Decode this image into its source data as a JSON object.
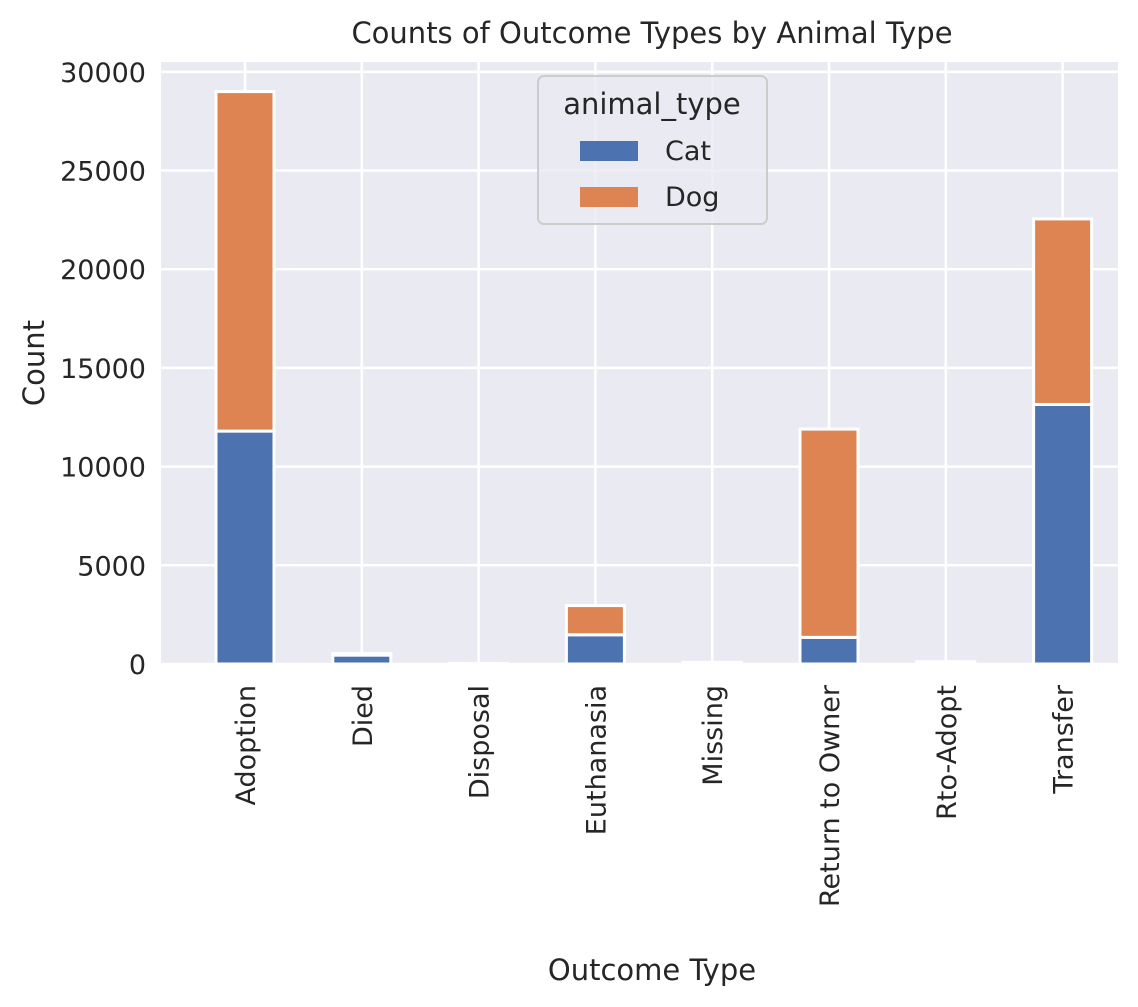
{
  "chart_data": {
    "type": "bar",
    "stacked": true,
    "title": "Counts of Outcome Types by Animal Type",
    "xlabel": "Outcome Type",
    "ylabel": "Count",
    "ylim": [
      0,
      30500
    ],
    "yticks": [
      0,
      5000,
      10000,
      15000,
      20000,
      25000,
      30000
    ],
    "ytick_labels": [
      "0",
      "5000",
      "10000",
      "15000",
      "20000",
      "25000",
      "30000"
    ],
    "categories": [
      "Adoption",
      "Died",
      "Disposal",
      "Euthanasia",
      "Missing",
      "Return to Owner",
      "Rto-Adopt",
      "Transfer"
    ],
    "series": [
      {
        "name": "Cat",
        "color": "#4C72B0",
        "values": [
          11800,
          450,
          20,
          1480,
          50,
          1350,
          60,
          13150
        ]
      },
      {
        "name": "Dog",
        "color": "#DD8452",
        "values": [
          17200,
          80,
          10,
          1480,
          30,
          10550,
          60,
          9400
        ]
      }
    ],
    "legend": {
      "title": "animal_type",
      "position": "upper center"
    },
    "grid": true
  }
}
